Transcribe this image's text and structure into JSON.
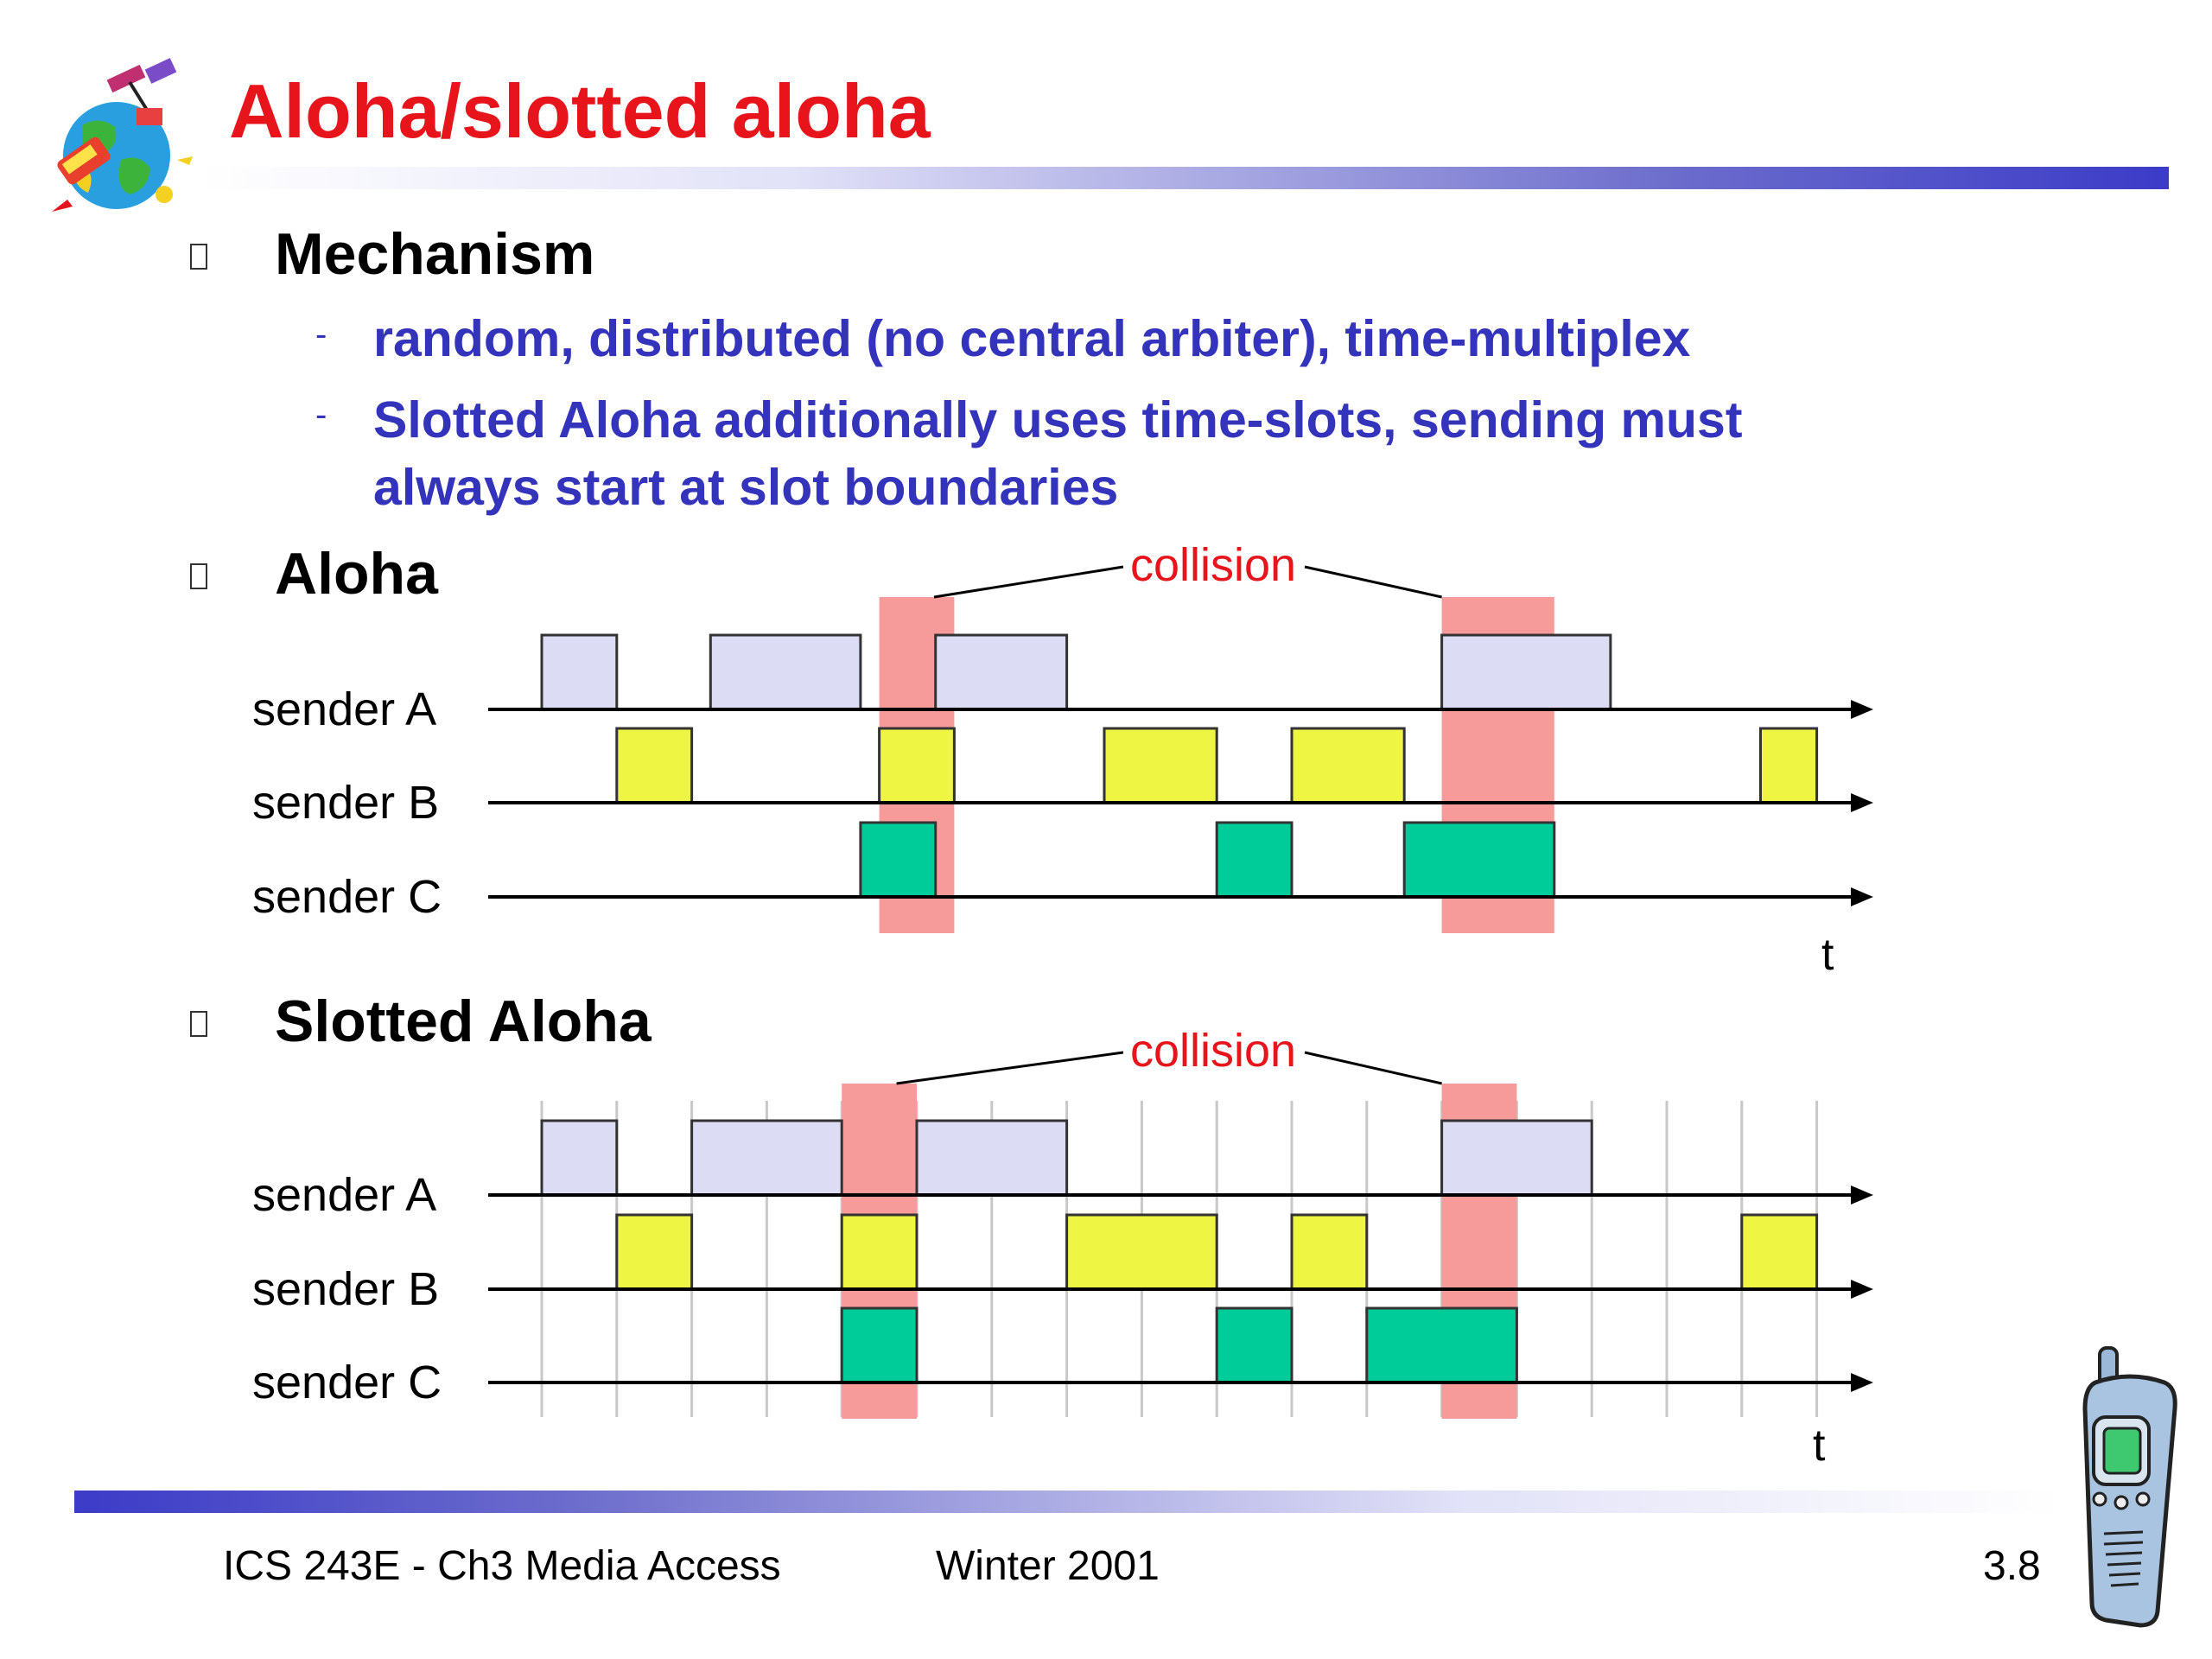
{
  "slide": {
    "title": "Aloha/slotted aloha",
    "sections": [
      {
        "heading": "Mechanism",
        "items": [
          "random, distributed (no central arbiter), time-multiplex",
          "Slotted Aloha additionally uses time-slots, sending must",
          "always start at slot boundaries"
        ]
      },
      {
        "heading": "Aloha"
      },
      {
        "heading": "Slotted Aloha"
      }
    ],
    "footer": {
      "course": "ICS 243E -  Ch3 Media Access",
      "term": "Winter 2001",
      "page": "3.8"
    }
  },
  "colors": {
    "title": "#e8141c",
    "subtext": "#3333bb",
    "sender_a": "#dcdcf4",
    "sender_b": "#eef542",
    "sender_c": "#00cc99",
    "collision": "#f79a9a",
    "slot_line": "#c8c8c8"
  },
  "icons": {
    "logo": "satellite-globe-icon",
    "phone": "mobile-phone-icon"
  },
  "diagrams": {
    "aloha": {
      "collision_label": "collision",
      "axis_label": "t",
      "senders": [
        "sender A",
        "sender B",
        "sender C"
      ],
      "slot_boundaries": [],
      "collisions": [
        [
          3.6,
          4.4
        ],
        [
          9.6,
          10.8
        ]
      ],
      "frames": [
        [
          [
            0,
            0.8
          ],
          [
            1.8,
            3.4
          ],
          [
            4.2,
            5.6
          ],
          [
            9.6,
            11.4
          ]
        ],
        [
          [
            0.8,
            1.6
          ],
          [
            3.6,
            4.4
          ],
          [
            6.0,
            7.2
          ],
          [
            8.0,
            9.2
          ],
          [
            13.0,
            13.6
          ]
        ],
        [
          [
            3.4,
            4.2
          ],
          [
            7.2,
            8.0
          ],
          [
            9.2,
            10.8
          ]
        ]
      ]
    },
    "slotted": {
      "collision_label": "collision",
      "axis_label": "t",
      "senders": [
        "sender A",
        "sender B",
        "sender C"
      ],
      "slot_boundaries": [
        0,
        0.8,
        1.6,
        2.4,
        3.2,
        4.0,
        4.8,
        5.6,
        6.4,
        7.2,
        8.0,
        8.8,
        9.6,
        10.4,
        11.2,
        12.0,
        12.8,
        13.6
      ],
      "collisions": [
        [
          3.2,
          4.0
        ],
        [
          9.6,
          10.4
        ]
      ],
      "frames": [
        [
          [
            0,
            0.8
          ],
          [
            1.6,
            3.2
          ],
          [
            4.0,
            5.6
          ],
          [
            9.6,
            11.2
          ]
        ],
        [
          [
            0.8,
            1.6
          ],
          [
            3.2,
            4.0
          ],
          [
            5.6,
            7.2
          ],
          [
            8.0,
            8.8
          ],
          [
            12.8,
            13.6
          ]
        ],
        [
          [
            3.2,
            4.0
          ],
          [
            7.2,
            8.0
          ],
          [
            8.8,
            10.4
          ]
        ]
      ]
    }
  }
}
